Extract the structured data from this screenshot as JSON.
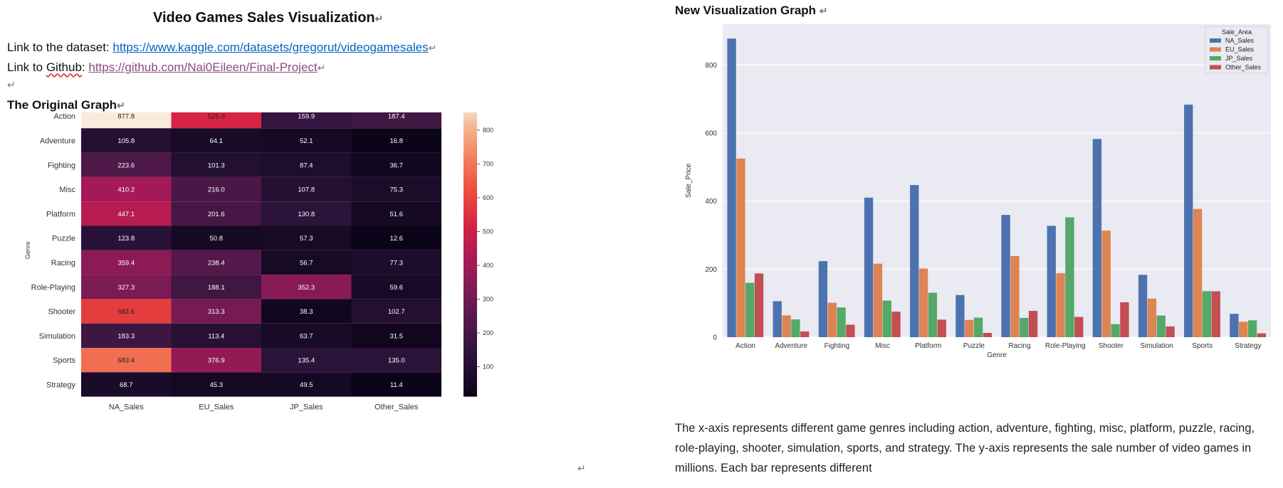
{
  "document": {
    "title": "Video Games Sales Visualization",
    "dataset_prefix": "Link to the dataset: ",
    "dataset_url": "https://www.kaggle.com/datasets/gregorut/videogamesales",
    "github_prefix": "Link to ",
    "github_word": "Github",
    "github_colon": ": ",
    "github_url": "https://github.com/Nai0Eileen/Final-Project",
    "para_mark": "↵",
    "original_title": "The Original Graph",
    "new_title": "New Visualization Graph",
    "caption": "The x-axis represents different game genres including action, adventure, fighting, misc, platform, puzzle, racing, role-playing, shooter, simulation, sports, and strategy. The y-axis represents the sale number of video games in millions. Each bar represents different"
  },
  "chart_data": [
    {
      "type": "heatmap",
      "title": "",
      "ylabel": "Genre",
      "xlabel": "",
      "rows": [
        "Action",
        "Adventure",
        "Fighting",
        "Misc",
        "Platform",
        "Puzzle",
        "Racing",
        "Role-Playing",
        "Shooter",
        "Simulation",
        "Sports",
        "Strategy"
      ],
      "columns": [
        "NA_Sales",
        "EU_Sales",
        "JP_Sales",
        "Other_Sales"
      ],
      "values": [
        [
          877.8,
          525.0,
          159.9,
          187.4
        ],
        [
          105.8,
          64.1,
          52.1,
          16.8
        ],
        [
          223.6,
          101.3,
          87.4,
          36.7
        ],
        [
          410.2,
          216.0,
          107.8,
          75.3
        ],
        [
          447.1,
          201.6,
          130.8,
          51.6
        ],
        [
          123.8,
          50.8,
          57.3,
          12.6
        ],
        [
          359.4,
          238.4,
          56.7,
          77.3
        ],
        [
          327.3,
          188.1,
          352.3,
          59.6
        ],
        [
          582.6,
          313.3,
          38.3,
          102.7
        ],
        [
          183.3,
          113.4,
          63.7,
          31.5
        ],
        [
          683.4,
          376.9,
          135.4,
          135.0
        ],
        [
          68.7,
          45.3,
          49.5,
          11.4
        ]
      ],
      "colorbar_ticks": [
        100,
        200,
        300,
        400,
        500,
        600,
        700,
        800
      ],
      "value_range": [
        11.4,
        877.8
      ]
    },
    {
      "type": "bar",
      "title": "",
      "xlabel": "Genre",
      "ylabel": "Sale_Price",
      "ylim": [
        0,
        920
      ],
      "yticks": [
        0,
        200,
        400,
        600,
        800
      ],
      "grid": true,
      "legend_title": "Sale_Area",
      "legend_position": "top-right",
      "categories": [
        "Action",
        "Adventure",
        "Fighting",
        "Misc",
        "Platform",
        "Puzzle",
        "Racing",
        "Role-Playing",
        "Shooter",
        "Simulation",
        "Sports",
        "Strategy"
      ],
      "series": [
        {
          "name": "NA_Sales",
          "color": "#4c72b0",
          "values": [
            877.8,
            105.8,
            223.6,
            410.2,
            447.1,
            123.8,
            359.4,
            327.3,
            582.6,
            183.3,
            683.4,
            68.7
          ]
        },
        {
          "name": "EU_Sales",
          "color": "#dd8452",
          "values": [
            525.0,
            64.1,
            101.3,
            216.0,
            201.6,
            50.8,
            238.4,
            188.1,
            313.3,
            113.4,
            376.9,
            45.3
          ]
        },
        {
          "name": "JP_Sales",
          "color": "#55a868",
          "values": [
            159.9,
            52.1,
            87.4,
            107.8,
            130.8,
            57.3,
            56.7,
            352.3,
            38.3,
            63.7,
            135.4,
            49.5
          ]
        },
        {
          "name": "Other_Sales",
          "color": "#c44e52",
          "values": [
            187.4,
            16.8,
            36.7,
            75.3,
            51.6,
            12.6,
            77.3,
            59.6,
            102.7,
            31.5,
            135.0,
            11.4
          ]
        }
      ]
    }
  ]
}
